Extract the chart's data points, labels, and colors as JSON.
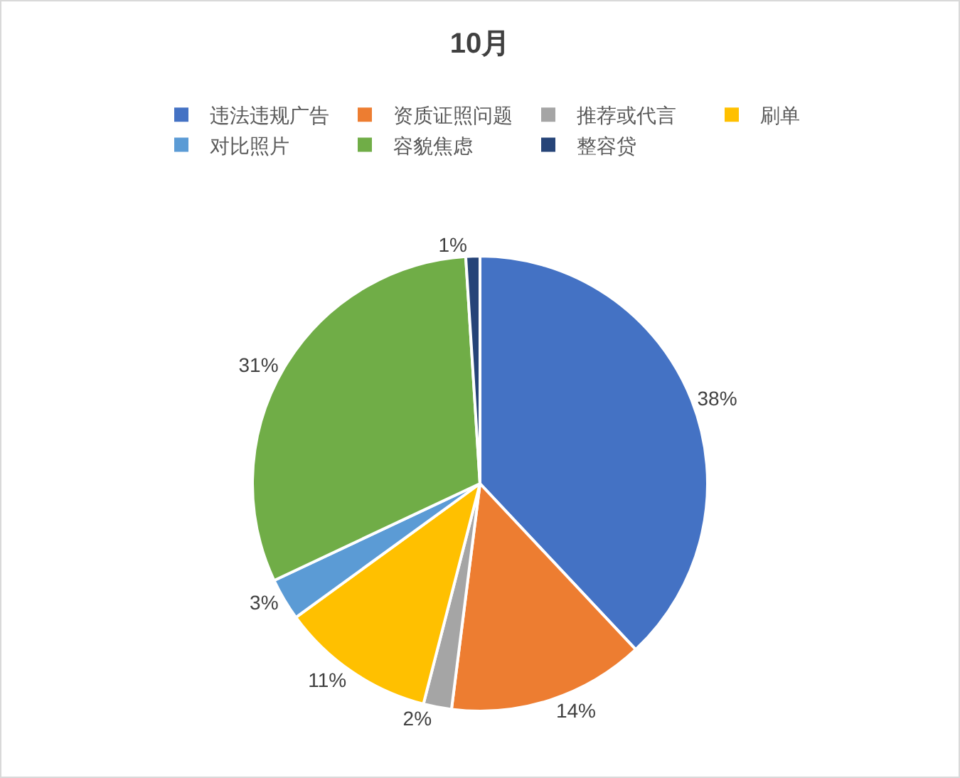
{
  "chart_data": {
    "type": "pie",
    "title": "10月",
    "categories": [
      "违法违规广告",
      "资质证照问题",
      "推荐或代言",
      "刷单",
      "对比照片",
      "容貌焦虑",
      "整容贷"
    ],
    "values": [
      38,
      14,
      2,
      11,
      3,
      31,
      1
    ],
    "value_labels": [
      "38%",
      "14%",
      "2%",
      "11%",
      "3%",
      "31%",
      "1%"
    ],
    "colors": [
      "#4472c4",
      "#ed7d31",
      "#a5a5a5",
      "#ffc000",
      "#5b9bd5",
      "#70ad47",
      "#264478"
    ],
    "legend": "top"
  }
}
